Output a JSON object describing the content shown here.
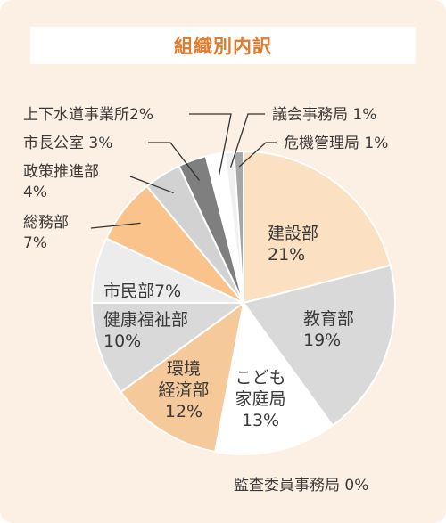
{
  "colors": {
    "card_background": "#fcefe3",
    "title": "#e07a2c",
    "leader_line": "#333333",
    "slice_outline": "#ffffff"
  },
  "chart_data": {
    "type": "pie",
    "title": "組織別内訳",
    "start": "12 o'clock",
    "direction": "clockwise",
    "slices": [
      {
        "name": "建設部",
        "value": 21,
        "label": "建設部",
        "pct_label": "21%",
        "color": "#fbe0c2"
      },
      {
        "name": "教育部",
        "value": 19,
        "label": "教育部",
        "pct_label": "19%",
        "color": "#d9d9d9"
      },
      {
        "name": "こども家庭局",
        "value": 13,
        "label": "こども家庭局",
        "lines": [
          "こども",
          "家庭局",
          "13%"
        ],
        "color": "#ffffff"
      },
      {
        "name": "環境経済部",
        "value": 12,
        "label": "環境経済部",
        "lines": [
          "環境",
          "経済部",
          "12%"
        ],
        "color": "#f6c99a"
      },
      {
        "name": "健康福祉部",
        "value": 10,
        "label": "健康福祉部",
        "pct_label": "10%",
        "color": "#d9d9d9"
      },
      {
        "name": "市民部",
        "value": 7,
        "label": "市民部7%",
        "color": "#ececec"
      },
      {
        "name": "総務部",
        "value": 7,
        "label": "総務部",
        "pct_label": "7%",
        "color": "#fac38b"
      },
      {
        "name": "政策推進部",
        "value": 4,
        "label": "政策推進部",
        "pct_label": "4%",
        "color": "#d2d2d2"
      },
      {
        "name": "市長公室",
        "value": 3,
        "label": "市長公室 3%",
        "color": "#7f7f7f"
      },
      {
        "name": "上下水道事業所",
        "value": 2,
        "label": "上下水道事業所2%",
        "color": "#ffffff"
      },
      {
        "name": "議会事務局",
        "value": 1,
        "label": "議会事務局 1%",
        "color": "#f0f0f0"
      },
      {
        "name": "危機管理局",
        "value": 1,
        "label": "危機管理局 1%",
        "color": "#a6a6a6"
      },
      {
        "name": "監査委員事務局",
        "value": 0,
        "label": "監査委員事務局 0%",
        "color": "#ffffff"
      }
    ]
  }
}
